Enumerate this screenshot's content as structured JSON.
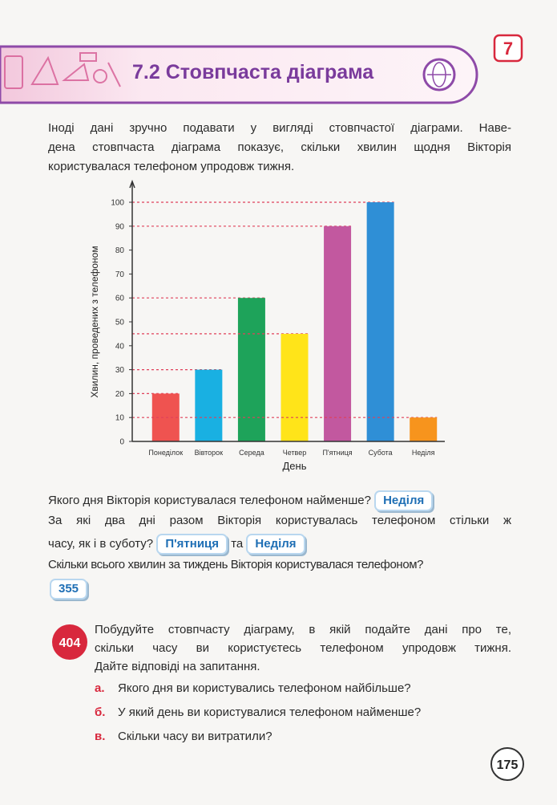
{
  "header": {
    "chapter": "7",
    "title": "7.2 Стовпчаста діаграма"
  },
  "intro": [
    "Іноді дані зручно подавати у вигляді стовпчастої діаграми. Наве-",
    "дена стовпчаста діаграма показує, скільки хвилин щодня Вікторія",
    "користувалася телефоном упродовж тижня."
  ],
  "chart_data": {
    "type": "bar",
    "xlabel": "День",
    "ylabel": "Хвилин, проведених з телефоном",
    "categories": [
      "Понеділок",
      "Вівторок",
      "Середа",
      "Четвер",
      "П'ятниця",
      "Субота",
      "Неділя"
    ],
    "values": [
      20,
      30,
      60,
      45,
      90,
      100,
      10
    ],
    "colors": [
      "#ef5350",
      "#19b0e2",
      "#1ea35a",
      "#ffe419",
      "#c2589f",
      "#2f8fd6",
      "#f7941d"
    ],
    "ylim": [
      0,
      100
    ],
    "yticks": [
      0,
      10,
      20,
      30,
      40,
      50,
      60,
      70,
      80,
      90,
      100
    ],
    "reference_lines": true
  },
  "questions": [
    {
      "lines": [
        "Якого дня Вікторія користувалася телефоном найменше?"
      ],
      "answers": [
        "Неділя"
      ]
    },
    {
      "lines": [
        "За які два дні разом Вікторія користувалась телефоном стільки ж",
        "часу, як і в суботу?"
      ],
      "answers": [
        "П'ятниця",
        "Неділя"
      ],
      "connector": "та"
    },
    {
      "lines": [
        "Скільки всього хвилин за тиждень Вікторія користувалася телефоном?"
      ],
      "answers": [
        "355"
      ]
    }
  ],
  "exercise": {
    "number": "404",
    "lines": [
      "Побудуйте стовпчасту діаграму, в якій подайте дані про те,",
      "скільки часу ви користуєтесь телефоном упродовж тижня.",
      "Дайте відповіді на запитання."
    ],
    "items": [
      {
        "letter": "а.",
        "text": "Якого дня ви користувались телефоном найбільше?"
      },
      {
        "letter": "б.",
        "text": "У який день ви користувалися телефоном найменше?"
      },
      {
        "letter": "в.",
        "text": "Скільки часу ви витратили?"
      }
    ]
  },
  "page_number": "175"
}
